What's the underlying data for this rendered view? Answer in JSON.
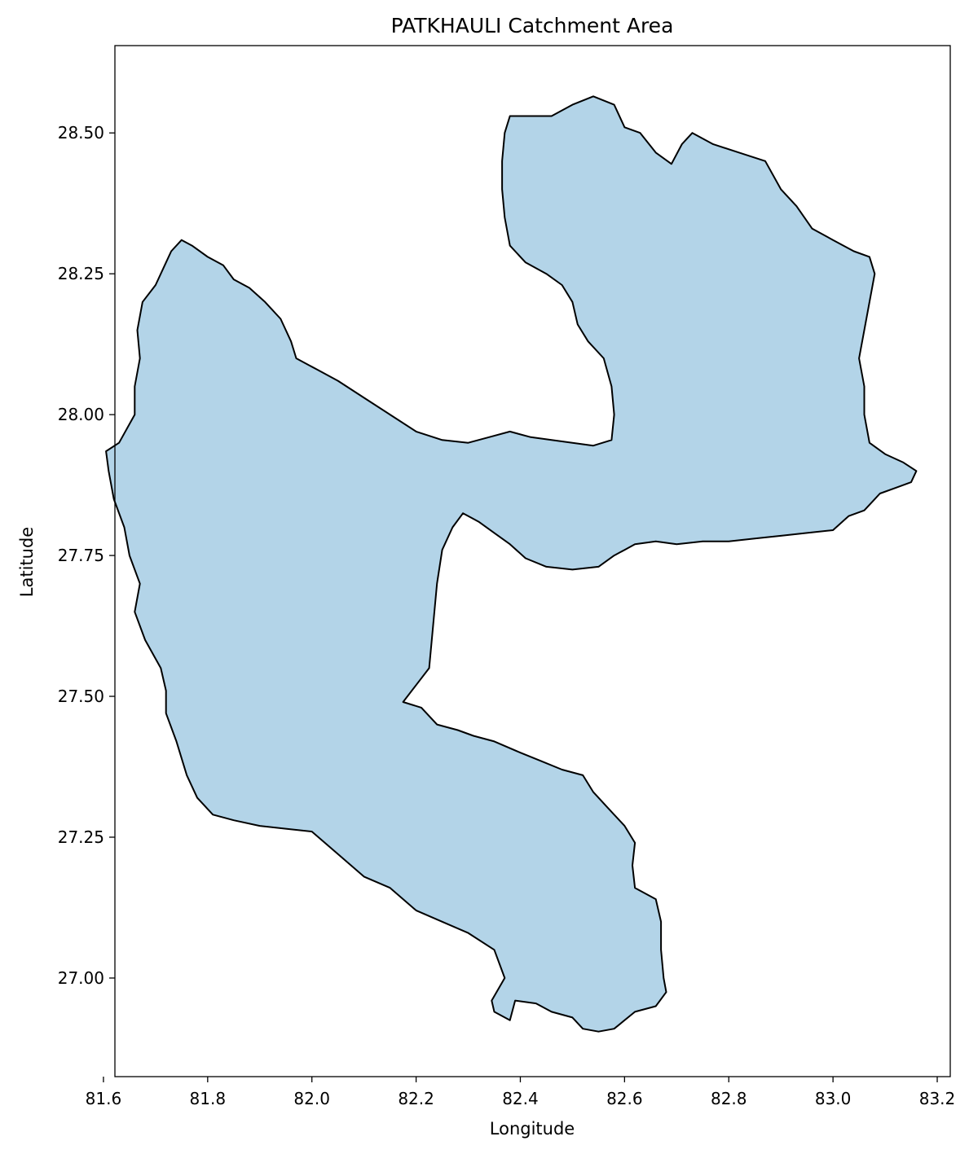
{
  "chart_data": {
    "type": "map",
    "title": "PATKHAULI Catchment Area",
    "xlabel": "Longitude",
    "ylabel": "Latitude",
    "xlim": [
      81.622,
      83.225
    ],
    "ylim": [
      26.825,
      28.655
    ],
    "xticks": [
      81.6,
      81.8,
      82.0,
      82.2,
      82.4,
      82.6,
      82.8,
      83.0,
      83.2
    ],
    "xtick_labels": [
      "81.6",
      "81.8",
      "82.0",
      "82.2",
      "82.4",
      "82.6",
      "82.8",
      "83.0",
      "83.2"
    ],
    "yticks": [
      27.0,
      27.25,
      27.5,
      27.75,
      28.0,
      28.25,
      28.5
    ],
    "ytick_labels": [
      "27.00",
      "27.25",
      "27.50",
      "27.75",
      "28.00",
      "28.25",
      "28.50"
    ],
    "grid": false,
    "legend": "none",
    "fill_color": "#b3d4e8",
    "edge_color": "#000000",
    "boundary": [
      [
        81.75,
        28.31
      ],
      [
        81.77,
        28.3
      ],
      [
        81.8,
        28.28
      ],
      [
        81.83,
        28.265
      ],
      [
        81.85,
        28.24
      ],
      [
        81.88,
        28.225
      ],
      [
        81.91,
        28.2
      ],
      [
        81.94,
        28.17
      ],
      [
        81.96,
        28.13
      ],
      [
        81.97,
        28.1
      ],
      [
        82.01,
        28.08
      ],
      [
        82.05,
        28.06
      ],
      [
        82.1,
        28.03
      ],
      [
        82.15,
        28.0
      ],
      [
        82.2,
        27.97
      ],
      [
        82.25,
        27.955
      ],
      [
        82.3,
        27.95
      ],
      [
        82.34,
        27.96
      ],
      [
        82.38,
        27.97
      ],
      [
        82.42,
        27.96
      ],
      [
        82.46,
        27.955
      ],
      [
        82.5,
        27.95
      ],
      [
        82.54,
        27.945
      ],
      [
        82.575,
        27.955
      ],
      [
        82.58,
        28.0
      ],
      [
        82.575,
        28.05
      ],
      [
        82.56,
        28.1
      ],
      [
        82.53,
        28.13
      ],
      [
        82.51,
        28.16
      ],
      [
        82.5,
        28.2
      ],
      [
        82.48,
        28.23
      ],
      [
        82.45,
        28.25
      ],
      [
        82.41,
        28.27
      ],
      [
        82.38,
        28.3
      ],
      [
        82.37,
        28.35
      ],
      [
        82.365,
        28.4
      ],
      [
        82.365,
        28.45
      ],
      [
        82.37,
        28.5
      ],
      [
        82.38,
        28.53
      ],
      [
        82.42,
        28.53
      ],
      [
        82.46,
        28.53
      ],
      [
        82.5,
        28.55
      ],
      [
        82.54,
        28.565
      ],
      [
        82.58,
        28.55
      ],
      [
        82.6,
        28.51
      ],
      [
        82.63,
        28.5
      ],
      [
        82.66,
        28.465
      ],
      [
        82.69,
        28.445
      ],
      [
        82.71,
        28.48
      ],
      [
        82.73,
        28.5
      ],
      [
        82.77,
        28.48
      ],
      [
        82.82,
        28.465
      ],
      [
        82.87,
        28.45
      ],
      [
        82.9,
        28.4
      ],
      [
        82.93,
        28.37
      ],
      [
        82.96,
        28.33
      ],
      [
        83.0,
        28.31
      ],
      [
        83.04,
        28.29
      ],
      [
        83.07,
        28.28
      ],
      [
        83.08,
        28.25
      ],
      [
        83.07,
        28.2
      ],
      [
        83.06,
        28.15
      ],
      [
        83.05,
        28.1
      ],
      [
        83.06,
        28.05
      ],
      [
        83.06,
        28.0
      ],
      [
        83.07,
        27.95
      ],
      [
        83.1,
        27.93
      ],
      [
        83.135,
        27.915
      ],
      [
        83.16,
        27.9
      ],
      [
        83.15,
        27.88
      ],
      [
        83.12,
        27.87
      ],
      [
        83.09,
        27.86
      ],
      [
        83.08,
        27.85
      ],
      [
        83.06,
        27.83
      ],
      [
        83.03,
        27.82
      ],
      [
        83.0,
        27.795
      ],
      [
        82.95,
        27.79
      ],
      [
        82.9,
        27.785
      ],
      [
        82.85,
        27.78
      ],
      [
        82.8,
        27.775
      ],
      [
        82.75,
        27.775
      ],
      [
        82.7,
        27.77
      ],
      [
        82.66,
        27.775
      ],
      [
        82.62,
        27.77
      ],
      [
        82.6,
        27.76
      ],
      [
        82.58,
        27.75
      ],
      [
        82.55,
        27.73
      ],
      [
        82.5,
        27.725
      ],
      [
        82.45,
        27.73
      ],
      [
        82.41,
        27.745
      ],
      [
        82.38,
        27.77
      ],
      [
        82.35,
        27.79
      ],
      [
        82.32,
        27.81
      ],
      [
        82.29,
        27.825
      ],
      [
        82.27,
        27.8
      ],
      [
        82.25,
        27.76
      ],
      [
        82.24,
        27.7
      ],
      [
        82.235,
        27.65
      ],
      [
        82.23,
        27.6
      ],
      [
        82.225,
        27.55
      ],
      [
        82.2,
        27.52
      ],
      [
        82.175,
        27.49
      ],
      [
        82.21,
        27.48
      ],
      [
        82.24,
        27.45
      ],
      [
        82.28,
        27.44
      ],
      [
        82.31,
        27.43
      ],
      [
        82.35,
        27.42
      ],
      [
        82.4,
        27.4
      ],
      [
        82.44,
        27.385
      ],
      [
        82.48,
        27.37
      ],
      [
        82.52,
        27.36
      ],
      [
        82.54,
        27.33
      ],
      [
        82.57,
        27.3
      ],
      [
        82.6,
        27.27
      ],
      [
        82.62,
        27.24
      ],
      [
        82.615,
        27.2
      ],
      [
        82.62,
        27.16
      ],
      [
        82.66,
        27.14
      ],
      [
        82.67,
        27.1
      ],
      [
        82.67,
        27.05
      ],
      [
        82.675,
        27.0
      ],
      [
        82.68,
        26.975
      ],
      [
        82.66,
        26.95
      ],
      [
        82.62,
        26.94
      ],
      [
        82.58,
        26.91
      ],
      [
        82.55,
        26.905
      ],
      [
        82.52,
        26.91
      ],
      [
        82.5,
        26.93
      ],
      [
        82.46,
        26.94
      ],
      [
        82.43,
        26.955
      ],
      [
        82.39,
        26.96
      ],
      [
        82.38,
        26.925
      ],
      [
        82.35,
        26.94
      ],
      [
        82.345,
        26.96
      ],
      [
        82.37,
        27.0
      ],
      [
        82.35,
        27.05
      ],
      [
        82.3,
        27.08
      ],
      [
        82.25,
        27.1
      ],
      [
        82.2,
        27.12
      ],
      [
        82.15,
        27.16
      ],
      [
        82.1,
        27.18
      ],
      [
        82.05,
        27.22
      ],
      [
        82.0,
        27.26
      ],
      [
        81.95,
        27.265
      ],
      [
        81.9,
        27.27
      ],
      [
        81.85,
        27.28
      ],
      [
        81.81,
        27.29
      ],
      [
        81.78,
        27.32
      ],
      [
        81.76,
        27.36
      ],
      [
        81.74,
        27.42
      ],
      [
        81.72,
        27.47
      ],
      [
        81.72,
        27.51
      ],
      [
        81.71,
        27.55
      ],
      [
        81.68,
        27.6
      ],
      [
        81.66,
        27.65
      ],
      [
        81.67,
        27.7
      ],
      [
        81.65,
        27.75
      ],
      [
        81.64,
        27.8
      ],
      [
        81.62,
        27.85
      ],
      [
        81.61,
        27.9
      ],
      [
        81.605,
        27.935
      ],
      [
        81.63,
        27.95
      ],
      [
        81.66,
        28.0
      ],
      [
        81.66,
        28.05
      ],
      [
        81.67,
        28.1
      ],
      [
        81.665,
        28.15
      ],
      [
        81.675,
        28.2
      ],
      [
        81.7,
        28.23
      ],
      [
        81.72,
        28.27
      ],
      [
        81.73,
        28.29
      ]
    ]
  }
}
